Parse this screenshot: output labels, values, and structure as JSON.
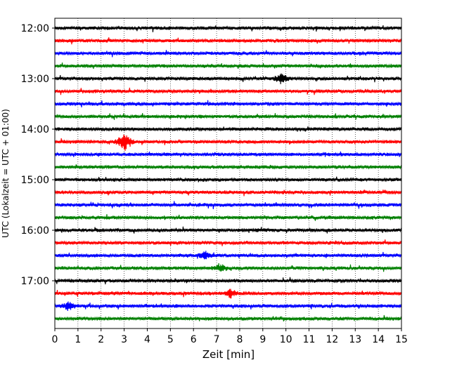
{
  "chart_data": {
    "type": "line",
    "title": "",
    "xlabel": "Zeit  [min]",
    "ylabel": "UTC (Lokalzeit = UTC + 01:00)",
    "xlim": [
      0,
      15
    ],
    "x_ticks": [
      0,
      1,
      2,
      3,
      4,
      5,
      6,
      7,
      8,
      9,
      10,
      11,
      12,
      13,
      14,
      15
    ],
    "x_tick_labels": [
      "0",
      "1",
      "2",
      "3",
      "4",
      "5",
      "6",
      "7",
      "8",
      "9",
      "10",
      "11",
      "12",
      "13",
      "14",
      "15"
    ],
    "y_ticks": [
      {
        "label": "12:00",
        "row": 0
      },
      {
        "label": "13:00",
        "row": 4
      },
      {
        "label": "14:00",
        "row": 8
      },
      {
        "label": "15:00",
        "row": 12
      },
      {
        "label": "16:00",
        "row": 16
      },
      {
        "label": "17:00",
        "row": 20
      }
    ],
    "grid_x": "dotted",
    "color_cycle": [
      "#000000",
      "#ff0000",
      "#0000ff",
      "#008000"
    ],
    "rows_count": 24,
    "rows_minutes": 15,
    "notable_events": [
      {
        "row": 9,
        "minute": 3.0,
        "amplitude": 2.6
      },
      {
        "row": 4,
        "minute": 9.8,
        "amplitude": 1.2
      },
      {
        "row": 21,
        "minute": 7.6,
        "amplitude": 1.1
      },
      {
        "row": 22,
        "minute": 0.6,
        "amplitude": 1.0
      },
      {
        "row": 18,
        "minute": 6.5,
        "amplitude": 1.0
      },
      {
        "row": 19,
        "minute": 7.2,
        "amplitude": 0.9
      }
    ]
  }
}
